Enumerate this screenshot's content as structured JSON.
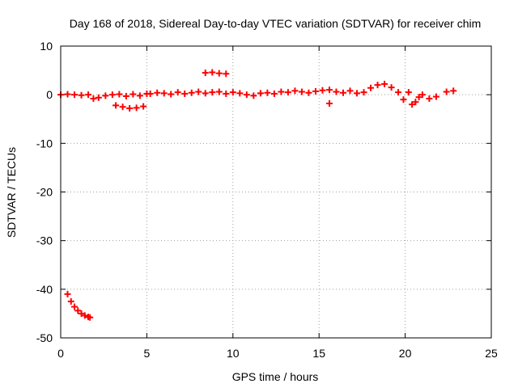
{
  "chart_data": {
    "type": "scatter",
    "title": "Day 168 of 2018, Sidereal Day-to-day VTEC variation (SDTVAR) for receiver chim",
    "xlabel": "GPS time / hours",
    "ylabel": "SDTVAR / TECUs",
    "xlim": [
      0,
      25
    ],
    "ylim": [
      -50,
      10
    ],
    "xticks": [
      "0",
      "5",
      "10",
      "15",
      "20",
      "25"
    ],
    "yticks": [
      "10",
      "0",
      "-10",
      "-20",
      "-30",
      "-40",
      "-50"
    ],
    "grid": true,
    "marker": "+",
    "series_color": "#ff0000",
    "series": [
      {
        "name": "SDTVAR",
        "x": [
          0.4,
          0.6,
          0.8,
          1.0,
          1.2,
          1.4,
          1.6,
          1.7,
          0.0,
          0.4,
          0.8,
          1.2,
          1.6,
          1.9,
          2.2,
          2.6,
          3.0,
          3.4,
          3.8,
          4.2,
          4.6,
          5.0,
          3.2,
          3.6,
          4.0,
          4.4,
          4.8,
          5.2,
          5.6,
          6.0,
          6.4,
          6.8,
          7.2,
          7.6,
          8.0,
          8.4,
          8.8,
          9.2,
          9.6,
          8.4,
          8.8,
          9.2,
          9.6,
          10.0,
          10.4,
          10.8,
          11.2,
          11.6,
          12.0,
          12.4,
          12.8,
          13.2,
          13.6,
          14.0,
          14.4,
          14.8,
          15.2,
          15.6,
          15.6,
          16.0,
          16.4,
          16.8,
          17.2,
          17.6,
          18.0,
          18.4,
          18.8,
          19.2,
          19.6,
          19.9,
          20.2,
          20.4,
          20.6,
          20.8,
          21.0,
          21.4,
          21.8,
          22.4,
          22.8
        ],
        "y": [
          -41.0,
          -42.5,
          -43.6,
          -44.4,
          -45.0,
          -45.4,
          -45.7,
          -45.8,
          0.0,
          0.1,
          0.0,
          -0.1,
          0.0,
          -0.8,
          -0.6,
          -0.2,
          0.0,
          0.1,
          -0.3,
          0.1,
          -0.2,
          0.2,
          -2.2,
          -2.5,
          -2.8,
          -2.7,
          -2.4,
          0.2,
          0.4,
          0.3,
          0.1,
          0.5,
          0.2,
          0.4,
          0.6,
          0.3,
          0.5,
          0.6,
          0.2,
          4.5,
          4.6,
          4.4,
          4.3,
          0.5,
          0.3,
          0.0,
          -0.2,
          0.3,
          0.4,
          0.2,
          0.6,
          0.5,
          0.8,
          0.6,
          0.4,
          0.7,
          0.9,
          1.0,
          -1.8,
          0.6,
          0.4,
          0.8,
          0.3,
          0.5,
          1.4,
          2.0,
          2.2,
          1.5,
          0.5,
          -1.0,
          0.5,
          -2.0,
          -1.5,
          -0.5,
          0.0,
          -0.8,
          -0.4,
          0.6,
          0.8
        ]
      }
    ]
  }
}
